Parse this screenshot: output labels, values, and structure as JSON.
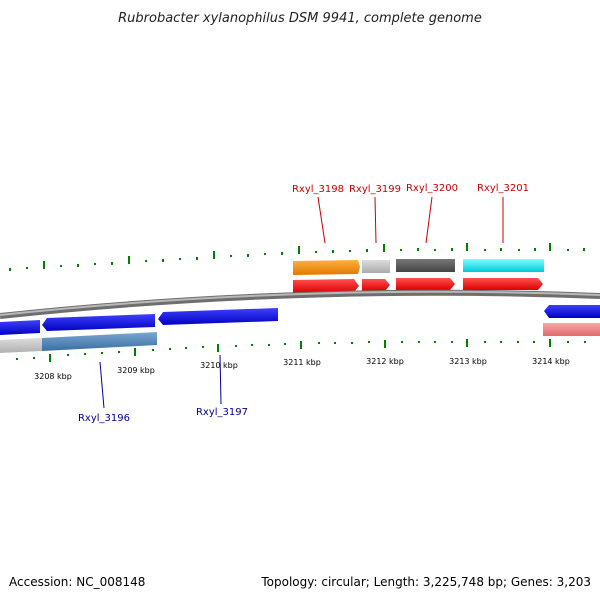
{
  "title": "Rubrobacter xylanophilus DSM 9941, complete genome",
  "accession": "Accession: NC_008148",
  "summary": "Topology: circular; Length: 3,225,748 bp; Genes: 3,203",
  "kbp_labels": [
    "3208 kbp",
    "3209 kbp",
    "3210 kbp",
    "3211 kbp",
    "3212 kbp",
    "3213 kbp",
    "3214 kbp"
  ],
  "upper_gene_labels": [
    "Rxyl_3198",
    "Rxyl_3199",
    "Rxyl_3200",
    "Rxyl_3201"
  ],
  "lower_gene_labels": [
    "Rxyl_3196",
    "Rxyl_3197"
  ],
  "colors": {
    "upper_label": "#cc0000",
    "lower_label": "#000099",
    "tick": "#008000",
    "backbone": "#888888",
    "orange": "#ff8c00",
    "light_gray": "#bbbbbb",
    "dark_gray": "#555555",
    "cyan": "#00e5ee",
    "red": "#ff0000",
    "blue": "#0000ee",
    "steel_blue": "#4682b4",
    "salmon": "#f08080"
  }
}
